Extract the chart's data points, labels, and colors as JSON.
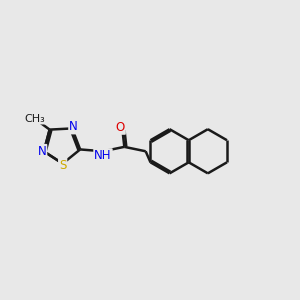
{
  "background_color": "#e8e8e8",
  "bond_color": "#1a1a1a",
  "bond_width": 1.8,
  "atom_colors": {
    "N": "#0000ee",
    "O": "#dd0000",
    "S": "#ccaa00",
    "C": "#1a1a1a",
    "H": "#1a1a1a"
  },
  "font_size": 8.5,
  "figsize": [
    3.0,
    3.0
  ],
  "dpi": 100,
  "xlim": [
    -4.2,
    3.8
  ],
  "ylim": [
    -2.2,
    2.2
  ]
}
